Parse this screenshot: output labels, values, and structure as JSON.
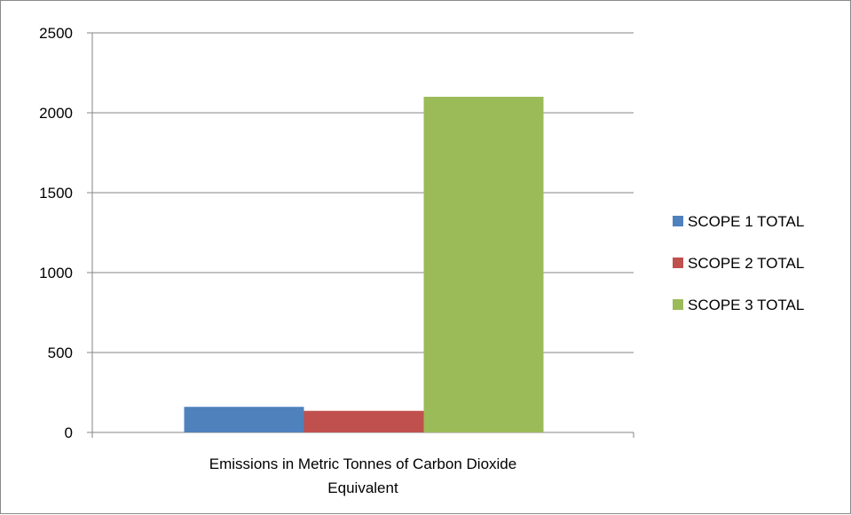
{
  "chart_data": {
    "type": "bar",
    "categories": [
      "Emissions in Metric Tonnes of Carbon Dioxide Equivalent"
    ],
    "category_label_lines": [
      "Emissions in Metric Tonnes of Carbon Dioxide",
      "Equivalent"
    ],
    "series": [
      {
        "name": "SCOPE 1 TOTAL",
        "values": [
          160
        ],
        "color": "#4F81BD"
      },
      {
        "name": "SCOPE 2 TOTAL",
        "values": [
          135
        ],
        "color": "#C0504D"
      },
      {
        "name": "SCOPE 3 TOTAL",
        "values": [
          2100
        ],
        "color": "#9BBB59"
      }
    ],
    "ylim": [
      0,
      2500
    ],
    "yticks": [
      "0",
      "500",
      "1000",
      "1500",
      "2000",
      "2500"
    ],
    "grid": true,
    "legend_position": "right",
    "title": "",
    "xlabel": "",
    "ylabel": ""
  }
}
